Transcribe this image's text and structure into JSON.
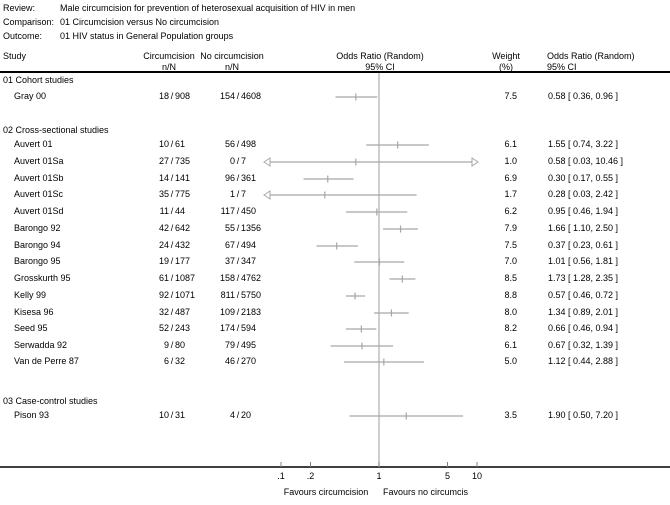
{
  "header": {
    "review_label": "Review:",
    "review": "Male circumcision for prevention of heterosexual acquisition of HIV in men",
    "comparison_label": "Comparison:",
    "comparison": "01 Circumcision versus No circumcision",
    "outcome_label": "Outcome:",
    "outcome": "01 HIV status in General Population groups"
  },
  "columns": {
    "study": "Study",
    "treat": "Circumcision",
    "treat_sub": "n/N",
    "control": "No circumcision",
    "control_sub": "n/N",
    "plot": "Odds Ratio (Random)",
    "plot_sub": "95% CI",
    "weight": "Weight",
    "weight_sub": "(%)",
    "or": "Odds Ratio (Random)",
    "or_sub": "95% CI"
  },
  "chart_data": {
    "type": "forest",
    "effect_measure": "Odds Ratio (Random) 95% CI",
    "x_scale": "log",
    "x_ticks": [
      0.1,
      0.2,
      1,
      5,
      10
    ],
    "x_tick_labels": [
      ".1",
      ".2",
      "1",
      "5",
      "10"
    ],
    "x_plot_range": [
      0.066,
      10.3
    ],
    "null_line": 1,
    "x_label_left": "Favours circumcision",
    "x_label_right": "Favours no circumcis",
    "line_color": "#a6a6a6",
    "null_line_color": "#b3b3b3",
    "groups": [
      {
        "label": "01 Cohort studies",
        "studies": [
          {
            "name": "Gray 00",
            "treat_n": "18",
            "treat_N": "908",
            "ctrl_n": "154",
            "ctrl_N": "4608",
            "or": 0.58,
            "ci_low": 0.36,
            "ci_high": 0.96,
            "weight": "7.5",
            "or_text": "0.58 [ 0.36, 0.96 ]"
          }
        ]
      },
      {
        "label": "02 Cross-sectional studies",
        "studies": [
          {
            "name": "Auvert 01",
            "treat_n": "10",
            "treat_N": "61",
            "ctrl_n": "56",
            "ctrl_N": "498",
            "or": 1.55,
            "ci_low": 0.74,
            "ci_high": 3.22,
            "weight": "6.1",
            "or_text": "1.55 [ 0.74, 3.22 ]"
          },
          {
            "name": "Auvert 01Sa",
            "treat_n": "27",
            "treat_N": "735",
            "ctrl_n": "0",
            "ctrl_N": "7",
            "or": 0.58,
            "ci_low": 0.03,
            "ci_high": 10.46,
            "weight": "1.0",
            "or_text": "0.58 [ 0.03, 10.46 ]"
          },
          {
            "name": "Auvert 01Sb",
            "treat_n": "14",
            "treat_N": "141",
            "ctrl_n": "96",
            "ctrl_N": "361",
            "or": 0.3,
            "ci_low": 0.17,
            "ci_high": 0.55,
            "weight": "6.9",
            "or_text": "0.30 [ 0.17, 0.55 ]"
          },
          {
            "name": "Auvert 01Sc",
            "treat_n": "35",
            "treat_N": "775",
            "ctrl_n": "1",
            "ctrl_N": "7",
            "or": 0.28,
            "ci_low": 0.03,
            "ci_high": 2.42,
            "weight": "1.7",
            "or_text": "0.28 [ 0.03, 2.42 ]"
          },
          {
            "name": "Auvert 01Sd",
            "treat_n": "11",
            "treat_N": "44",
            "ctrl_n": "117",
            "ctrl_N": "450",
            "or": 0.95,
            "ci_low": 0.46,
            "ci_high": 1.94,
            "weight": "6.2",
            "or_text": "0.95 [ 0.46, 1.94 ]"
          },
          {
            "name": "Barongo 92",
            "treat_n": "42",
            "treat_N": "642",
            "ctrl_n": "55",
            "ctrl_N": "1356",
            "or": 1.66,
            "ci_low": 1.1,
            "ci_high": 2.5,
            "weight": "7.9",
            "or_text": "1.66 [ 1.10, 2.50 ]"
          },
          {
            "name": "Barongo 94",
            "treat_n": "24",
            "treat_N": "432",
            "ctrl_n": "67",
            "ctrl_N": "494",
            "or": 0.37,
            "ci_low": 0.23,
            "ci_high": 0.61,
            "weight": "7.5",
            "or_text": "0.37 [ 0.23, 0.61 ]"
          },
          {
            "name": "Barongo 95",
            "treat_n": "19",
            "treat_N": "177",
            "ctrl_n": "37",
            "ctrl_N": "347",
            "or": 1.01,
            "ci_low": 0.56,
            "ci_high": 1.81,
            "weight": "7.0",
            "or_text": "1.01 [ 0.56, 1.81 ]"
          },
          {
            "name": "Grosskurth 95",
            "treat_n": "61",
            "treat_N": "1087",
            "ctrl_n": "158",
            "ctrl_N": "4762",
            "or": 1.73,
            "ci_low": 1.28,
            "ci_high": 2.35,
            "weight": "8.5",
            "or_text": "1.73 [ 1.28, 2.35 ]"
          },
          {
            "name": "Kelly 99",
            "treat_n": "92",
            "treat_N": "1071",
            "ctrl_n": "811",
            "ctrl_N": "5750",
            "or": 0.57,
            "ci_low": 0.46,
            "ci_high": 0.72,
            "weight": "8.8",
            "or_text": "0.57 [ 0.46, 0.72 ]"
          },
          {
            "name": "Kisesa 96",
            "treat_n": "32",
            "treat_N": "487",
            "ctrl_n": "109",
            "ctrl_N": "2183",
            "or": 1.34,
            "ci_low": 0.89,
            "ci_high": 2.01,
            "weight": "8.0",
            "or_text": "1.34 [ 0.89, 2.01 ]"
          },
          {
            "name": "Seed 95",
            "treat_n": "52",
            "treat_N": "243",
            "ctrl_n": "174",
            "ctrl_N": "594",
            "or": 0.66,
            "ci_low": 0.46,
            "ci_high": 0.94,
            "weight": "8.2",
            "or_text": "0.66 [ 0.46, 0.94 ]"
          },
          {
            "name": "Serwadda 92",
            "treat_n": "9",
            "treat_N": "80",
            "ctrl_n": "79",
            "ctrl_N": "495",
            "or": 0.67,
            "ci_low": 0.32,
            "ci_high": 1.39,
            "weight": "6.1",
            "or_text": "0.67 [ 0.32, 1.39 ]"
          },
          {
            "name": "Van de Perre 87",
            "treat_n": "6",
            "treat_N": "32",
            "ctrl_n": "46",
            "ctrl_N": "270",
            "or": 1.12,
            "ci_low": 0.44,
            "ci_high": 2.88,
            "weight": "5.0",
            "or_text": "1.12 [ 0.44, 2.88 ]"
          }
        ]
      },
      {
        "label": "03 Case-control studies",
        "studies": [
          {
            "name": "Pison 93",
            "treat_n": "10",
            "treat_N": "31",
            "ctrl_n": "4",
            "ctrl_N": "20",
            "or": 1.9,
            "ci_low": 0.5,
            "ci_high": 7.2,
            "weight": "3.5",
            "or_text": "1.90 [ 0.50, 7.20 ]"
          }
        ]
      }
    ]
  }
}
